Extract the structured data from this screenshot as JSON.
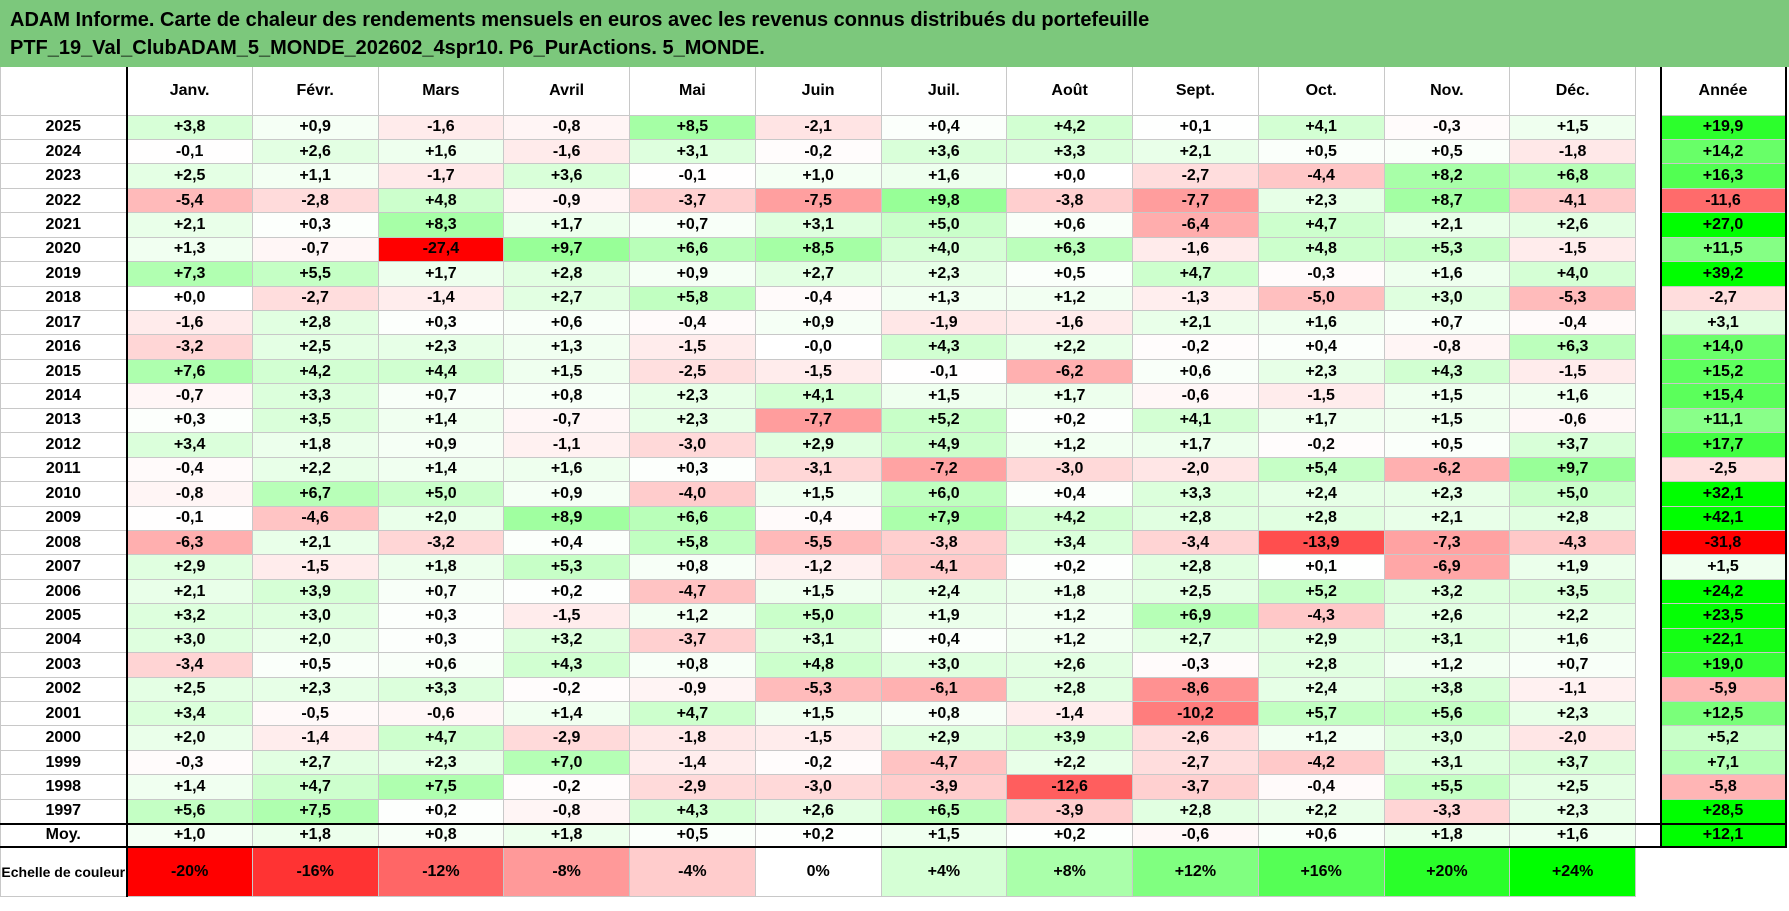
{
  "title_line1": "ADAM Informe. Carte de chaleur des rendements mensuels en euros avec les revenus connus distribués du portefeuille",
  "title_line2": "PTF_19_Val_ClubADAM_5_MONDE_202602_4spr10. P6_PurActions. 5_MONDE.",
  "chart_data": {
    "type": "heatmap",
    "columns": [
      "Janv.",
      "Févr.",
      "Mars",
      "Avril",
      "Mai",
      "Juin",
      "Juil.",
      "Août",
      "Sept.",
      "Oct.",
      "Nov.",
      "Déc."
    ],
    "annual_label": "Année",
    "rows": [
      {
        "year": "2025",
        "values": [
          "+3,8",
          "+0,9",
          "-1,6",
          "-0,8",
          "+8,5",
          "-2,1",
          "+0,4",
          "+4,2",
          "+0,1",
          "+4,1",
          "-0,3",
          "+1,5"
        ],
        "annual": "+19,9"
      },
      {
        "year": "2024",
        "values": [
          "-0,1",
          "+2,6",
          "+1,6",
          "-1,6",
          "+3,1",
          "-0,2",
          "+3,6",
          "+3,3",
          "+2,1",
          "+0,5",
          "+0,5",
          "-1,8"
        ],
        "annual": "+14,2"
      },
      {
        "year": "2023",
        "values": [
          "+2,5",
          "+1,1",
          "-1,7",
          "+3,6",
          "-0,1",
          "+1,0",
          "+1,6",
          "+0,0",
          "-2,7",
          "-4,4",
          "+8,2",
          "+6,8"
        ],
        "annual": "+16,3"
      },
      {
        "year": "2022",
        "values": [
          "-5,4",
          "-2,8",
          "+4,8",
          "-0,9",
          "-3,7",
          "-7,5",
          "+9,8",
          "-3,8",
          "-7,7",
          "+2,3",
          "+8,7",
          "-4,1"
        ],
        "annual": "-11,6"
      },
      {
        "year": "2021",
        "values": [
          "+2,1",
          "+0,3",
          "+8,3",
          "+1,7",
          "+0,7",
          "+3,1",
          "+5,0",
          "+0,6",
          "-6,4",
          "+4,7",
          "+2,1",
          "+2,6"
        ],
        "annual": "+27,0"
      },
      {
        "year": "2020",
        "values": [
          "+1,3",
          "-0,7",
          "-27,4",
          "+9,7",
          "+6,6",
          "+8,5",
          "+4,0",
          "+6,3",
          "-1,6",
          "+4,8",
          "+5,3",
          "-1,5"
        ],
        "annual": "+11,5"
      },
      {
        "year": "2019",
        "values": [
          "+7,3",
          "+5,5",
          "+1,7",
          "+2,8",
          "+0,9",
          "+2,7",
          "+2,3",
          "+0,5",
          "+4,7",
          "-0,3",
          "+1,6",
          "+4,0"
        ],
        "annual": "+39,2"
      },
      {
        "year": "2018",
        "values": [
          "+0,0",
          "-2,7",
          "-1,4",
          "+2,7",
          "+5,8",
          "-0,4",
          "+1,3",
          "+1,2",
          "-1,3",
          "-5,0",
          "+3,0",
          "-5,3"
        ],
        "annual": "-2,7"
      },
      {
        "year": "2017",
        "values": [
          "-1,6",
          "+2,8",
          "+0,3",
          "+0,6",
          "-0,4",
          "+0,9",
          "-1,9",
          "-1,6",
          "+2,1",
          "+1,6",
          "+0,7",
          "-0,4"
        ],
        "annual": "+3,1"
      },
      {
        "year": "2016",
        "values": [
          "-3,2",
          "+2,5",
          "+2,3",
          "+1,3",
          "-1,5",
          "-0,0",
          "+4,3",
          "+2,2",
          "-0,2",
          "+0,4",
          "-0,8",
          "+6,3"
        ],
        "annual": "+14,0"
      },
      {
        "year": "2015",
        "values": [
          "+7,6",
          "+4,2",
          "+4,4",
          "+1,5",
          "-2,5",
          "-1,5",
          "-0,1",
          "-6,2",
          "+0,6",
          "+2,3",
          "+4,3",
          "-1,5"
        ],
        "annual": "+15,2"
      },
      {
        "year": "2014",
        "values": [
          "-0,7",
          "+3,3",
          "+0,7",
          "+0,8",
          "+2,3",
          "+4,1",
          "+1,5",
          "+1,7",
          "-0,6",
          "-1,5",
          "+1,5",
          "+1,6"
        ],
        "annual": "+15,4"
      },
      {
        "year": "2013",
        "values": [
          "+0,3",
          "+3,5",
          "+1,4",
          "-0,7",
          "+2,3",
          "-7,7",
          "+5,2",
          "+0,2",
          "+4,1",
          "+1,7",
          "+1,5",
          "-0,6"
        ],
        "annual": "+11,1"
      },
      {
        "year": "2012",
        "values": [
          "+3,4",
          "+1,8",
          "+0,9",
          "-1,1",
          "-3,0",
          "+2,9",
          "+4,9",
          "+1,2",
          "+1,7",
          "-0,2",
          "+0,5",
          "+3,7"
        ],
        "annual": "+17,7"
      },
      {
        "year": "2011",
        "values": [
          "-0,4",
          "+2,2",
          "+1,4",
          "+1,6",
          "+0,3",
          "-3,1",
          "-7,2",
          "-3,0",
          "-2,0",
          "+5,4",
          "-6,2",
          "+9,7"
        ],
        "annual": "-2,5"
      },
      {
        "year": "2010",
        "values": [
          "-0,8",
          "+6,7",
          "+5,0",
          "+0,9",
          "-4,0",
          "+1,5",
          "+6,0",
          "+0,4",
          "+3,3",
          "+2,4",
          "+2,3",
          "+5,0"
        ],
        "annual": "+32,1"
      },
      {
        "year": "2009",
        "values": [
          "-0,1",
          "-4,6",
          "+2,0",
          "+8,9",
          "+6,6",
          "-0,4",
          "+7,9",
          "+4,2",
          "+2,8",
          "+2,8",
          "+2,1",
          "+2,8"
        ],
        "annual": "+42,1"
      },
      {
        "year": "2008",
        "values": [
          "-6,3",
          "+2,1",
          "-3,2",
          "+0,4",
          "+5,8",
          "-5,5",
          "-3,8",
          "+3,4",
          "-3,4",
          "-13,9",
          "-7,3",
          "-4,3"
        ],
        "annual": "-31,8"
      },
      {
        "year": "2007",
        "values": [
          "+2,9",
          "-1,5",
          "+1,8",
          "+5,3",
          "+0,8",
          "-1,2",
          "-4,1",
          "+0,2",
          "+2,8",
          "+0,1",
          "-6,9",
          "+1,9"
        ],
        "annual": "+1,5"
      },
      {
        "year": "2006",
        "values": [
          "+2,1",
          "+3,9",
          "+0,7",
          "+0,2",
          "-4,7",
          "+1,5",
          "+2,4",
          "+1,8",
          "+2,5",
          "+5,2",
          "+3,2",
          "+3,5"
        ],
        "annual": "+24,2"
      },
      {
        "year": "2005",
        "values": [
          "+3,2",
          "+3,0",
          "+0,3",
          "-1,5",
          "+1,2",
          "+5,0",
          "+1,9",
          "+1,2",
          "+6,9",
          "-4,3",
          "+2,6",
          "+2,2"
        ],
        "annual": "+23,5"
      },
      {
        "year": "2004",
        "values": [
          "+3,0",
          "+2,0",
          "+0,3",
          "+3,2",
          "-3,7",
          "+3,1",
          "+0,4",
          "+1,2",
          "+2,7",
          "+2,9",
          "+3,1",
          "+1,6"
        ],
        "annual": "+22,1"
      },
      {
        "year": "2003",
        "values": [
          "-3,4",
          "+0,5",
          "+0,6",
          "+4,3",
          "+0,8",
          "+4,8",
          "+3,0",
          "+2,6",
          "-0,3",
          "+2,8",
          "+1,2",
          "+0,7"
        ],
        "annual": "+19,0"
      },
      {
        "year": "2002",
        "values": [
          "+2,5",
          "+2,3",
          "+3,3",
          "-0,2",
          "-0,9",
          "-5,3",
          "-6,1",
          "+2,8",
          "-8,6",
          "+2,4",
          "+3,8",
          "-1,1"
        ],
        "annual": "-5,9"
      },
      {
        "year": "2001",
        "values": [
          "+3,4",
          "-0,5",
          "-0,6",
          "+1,4",
          "+4,7",
          "+1,5",
          "+0,8",
          "-1,4",
          "-10,2",
          "+5,7",
          "+5,6",
          "+2,3"
        ],
        "annual": "+12,5"
      },
      {
        "year": "2000",
        "values": [
          "+2,0",
          "-1,4",
          "+4,7",
          "-2,9",
          "-1,8",
          "-1,5",
          "+2,9",
          "+3,9",
          "-2,6",
          "+1,2",
          "+3,0",
          "-2,0"
        ],
        "annual": "+5,2"
      },
      {
        "year": "1999",
        "values": [
          "-0,3",
          "+2,7",
          "+2,3",
          "+7,0",
          "-1,4",
          "-0,2",
          "-4,7",
          "+2,2",
          "-2,7",
          "-4,2",
          "+3,1",
          "+3,7"
        ],
        "annual": "+7,1"
      },
      {
        "year": "1998",
        "values": [
          "+1,4",
          "+4,7",
          "+7,5",
          "-0,2",
          "-2,9",
          "-3,0",
          "-3,9",
          "-12,6",
          "-3,7",
          "-0,4",
          "+5,5",
          "+2,5"
        ],
        "annual": "-5,8"
      },
      {
        "year": "1997",
        "values": [
          "+5,6",
          "+7,5",
          "+0,2",
          "-0,8",
          "+4,3",
          "+2,6",
          "+6,5",
          "-3,9",
          "+2,8",
          "+2,2",
          "-3,3",
          "+2,3"
        ],
        "annual": "+28,5"
      }
    ],
    "average": {
      "label": "Moy.",
      "values": [
        "+1,0",
        "+1,8",
        "+0,8",
        "+1,8",
        "+0,5",
        "+0,2",
        "+1,5",
        "+0,2",
        "-0,6",
        "+0,6",
        "+1,8",
        "+1,6"
      ],
      "annual": "+12,1"
    },
    "color_scale": {
      "label": "Echelle de couleur",
      "steps": [
        "-20%",
        "-16%",
        "-12%",
        "-8%",
        "-4%",
        "0%",
        "+4%",
        "+8%",
        "+12%",
        "+16%",
        "+20%",
        "+24%"
      ],
      "min": -20,
      "max": 24,
      "negative_color": "#ff0000",
      "positive_color": "#00ff00",
      "neutral_color": "#ffffff"
    }
  }
}
